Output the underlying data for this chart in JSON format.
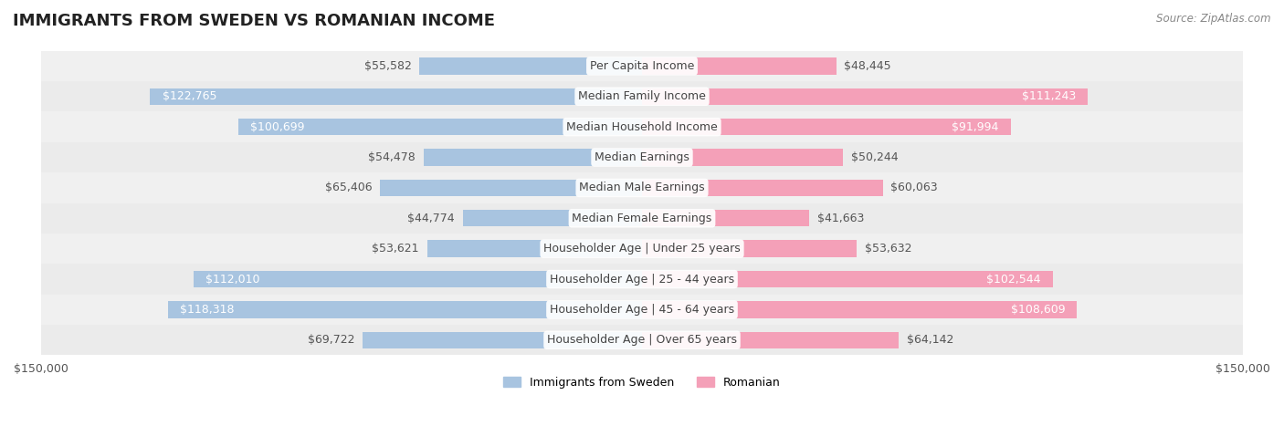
{
  "title": "IMMIGRANTS FROM SWEDEN VS ROMANIAN INCOME",
  "source": "Source: ZipAtlas.com",
  "categories": [
    "Per Capita Income",
    "Median Family Income",
    "Median Household Income",
    "Median Earnings",
    "Median Male Earnings",
    "Median Female Earnings",
    "Householder Age | Under 25 years",
    "Householder Age | 25 - 44 years",
    "Householder Age | 45 - 64 years",
    "Householder Age | Over 65 years"
  ],
  "sweden_values": [
    55582,
    122765,
    100699,
    54478,
    65406,
    44774,
    53621,
    112010,
    118318,
    69722
  ],
  "romanian_values": [
    48445,
    111243,
    91994,
    50244,
    60063,
    41663,
    53632,
    102544,
    108609,
    64142
  ],
  "sweden_color": "#a8c4e0",
  "romanian_color": "#f4a0b8",
  "sweden_label_color_dark": "#555555",
  "sweden_label_color_light": "#ffffff",
  "romanian_label_color_dark": "#555555",
  "romanian_label_color_light": "#ffffff",
  "row_bg_light": "#f0f0f0",
  "row_bg_mid": "#e8e8e8",
  "x_max": 150000,
  "legend_sweden": "Immigrants from Sweden",
  "legend_romanian": "Romanian",
  "background_color": "#ffffff",
  "bar_height": 0.55,
  "label_fontsize": 9,
  "category_fontsize": 9,
  "title_fontsize": 13,
  "source_fontsize": 8.5
}
